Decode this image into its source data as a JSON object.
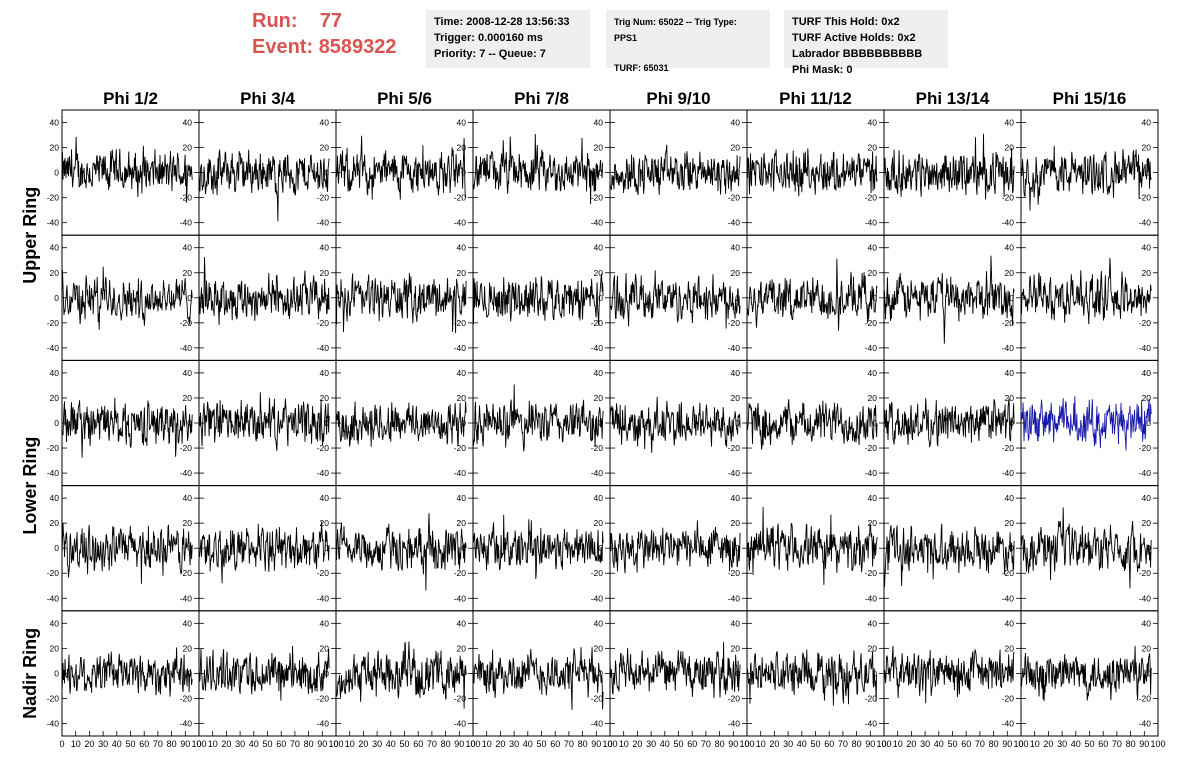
{
  "header": {
    "run_label": "Run:",
    "run_value": "77",
    "event_label": "Event:",
    "event_value": "8589322",
    "info1": [
      "Time: 2008-12-28 13:56:33",
      "Trigger: 0.000160 ms",
      "Priority: 7 -- Queue: 7"
    ],
    "info2": [
      "Trig Num: 65022 -- Trig Type: PPS1",
      "TURF: 65031"
    ],
    "info3": [
      "TURF This Hold: 0x2",
      "TURF Active Holds: 0x2",
      "Labrador BBBBBBBBBB",
      "Phi Mask: 0"
    ]
  },
  "colors": {
    "run_text": "#d9534f",
    "trace": "#000000",
    "highlight_trace": "#1a1aaa",
    "info_bg": "#efefef"
  },
  "chart_data": {
    "type": "line",
    "columns": [
      "Phi 1/2",
      "Phi 3/4",
      "Phi 5/6",
      "Phi 7/8",
      "Phi 9/10",
      "Phi 11/12",
      "Phi 13/14",
      "Phi 15/16"
    ],
    "rows": [
      "Upper Ring",
      "Upper Ring",
      "Lower Ring",
      "Lower Ring",
      "Nadir Ring"
    ],
    "row_labels": [
      {
        "text": "Upper Ring",
        "span": [
          0,
          1
        ]
      },
      {
        "text": "Lower Ring",
        "span": [
          2,
          3
        ]
      },
      {
        "text": "Nadir Ring",
        "span": [
          4,
          4
        ]
      }
    ],
    "xlim": [
      0,
      100
    ],
    "ylim": [
      -50,
      50
    ],
    "y_ticks": [
      -40,
      -20,
      0,
      20,
      40
    ],
    "x_ticks": [
      0,
      10,
      20,
      30,
      40,
      50,
      60,
      70,
      80,
      90,
      100
    ],
    "highlighted_panel": {
      "row": 2,
      "col": 7
    },
    "samples_per_trace": 260,
    "x_data_max": 95,
    "trace_amplitude": 22
  }
}
